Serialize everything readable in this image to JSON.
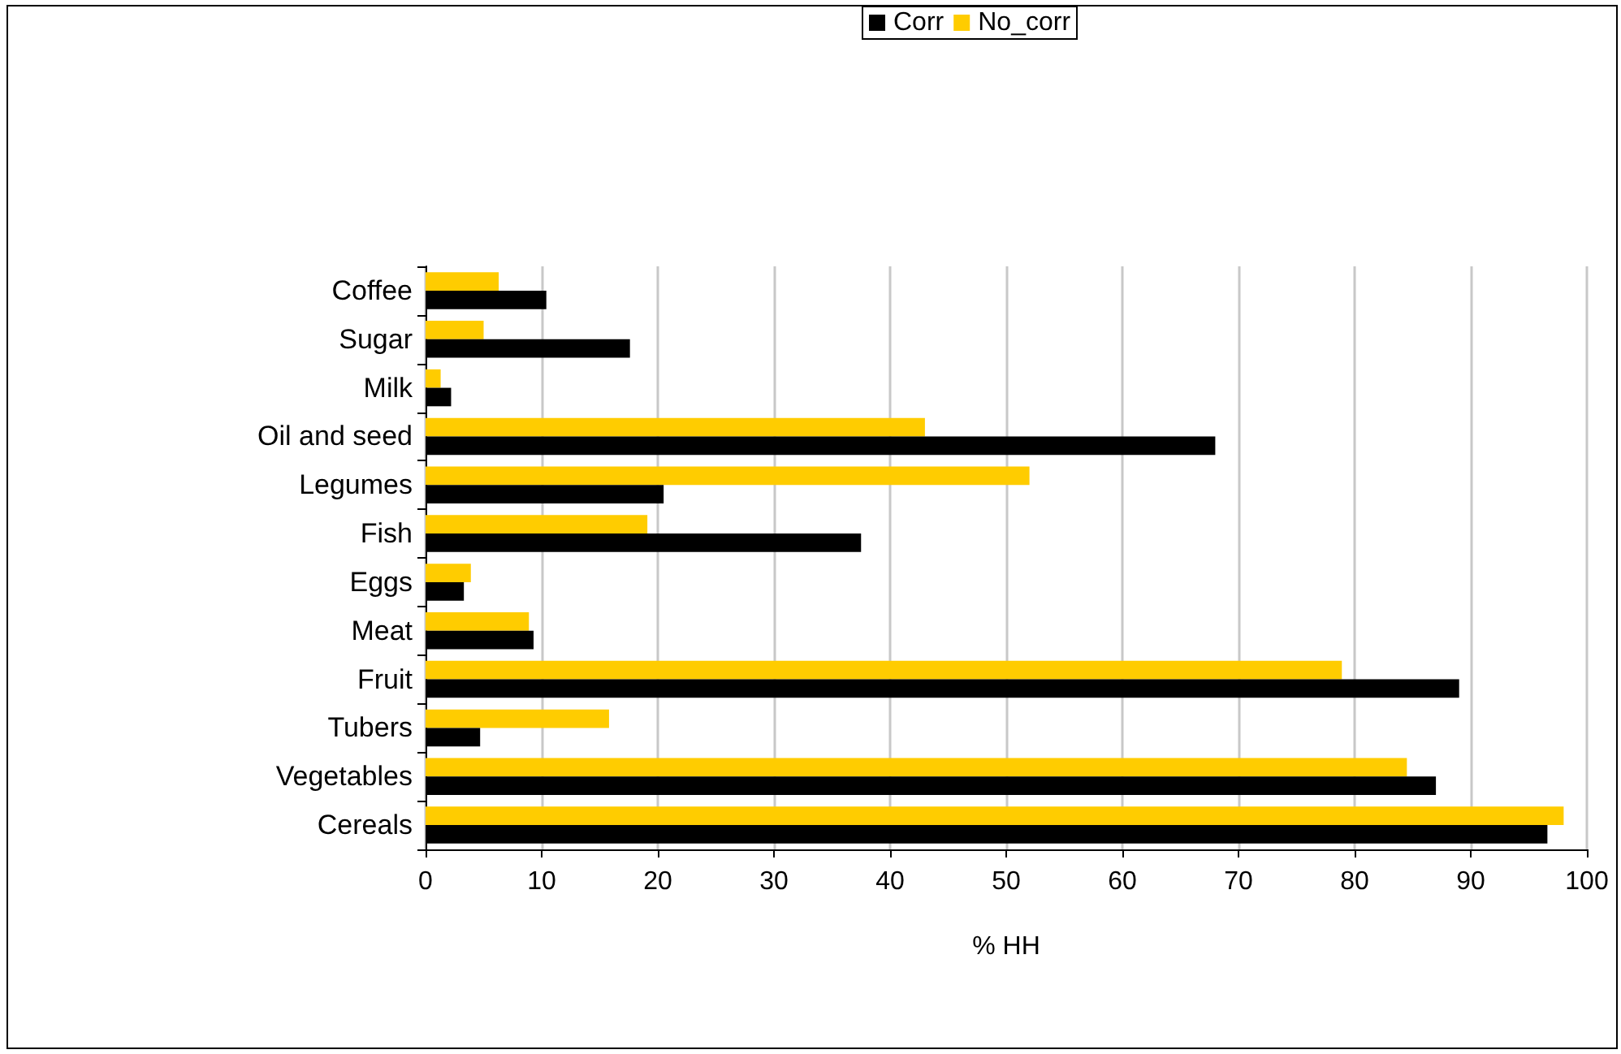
{
  "chart_data": {
    "type": "bar",
    "orientation": "horizontal",
    "xlabel": "% HH",
    "categories": [
      "Coffee",
      "Sugar",
      "Milk",
      "Oil and seed",
      "Legumes",
      "Fish",
      "Eggs",
      "Meat",
      "Fruit",
      "Tubers",
      "Vegetables",
      "Cereals"
    ],
    "series": [
      {
        "name": "Corr",
        "color": "#000000",
        "values": [
          10.4,
          17.6,
          2.2,
          68,
          20.5,
          37.5,
          3.3,
          9.3,
          89,
          4.7,
          87,
          96.6
        ]
      },
      {
        "name": "No_corr",
        "color": "#ffcc00",
        "values": [
          6.3,
          5,
          1.3,
          43,
          52,
          19.1,
          3.9,
          8.9,
          78.9,
          15.8,
          84.5,
          98
        ]
      }
    ],
    "xlim": [
      0,
      100
    ],
    "xticks": [
      0,
      10,
      20,
      30,
      40,
      50,
      60,
      70,
      80,
      90,
      100
    ],
    "grid": "x",
    "legend": "top"
  }
}
